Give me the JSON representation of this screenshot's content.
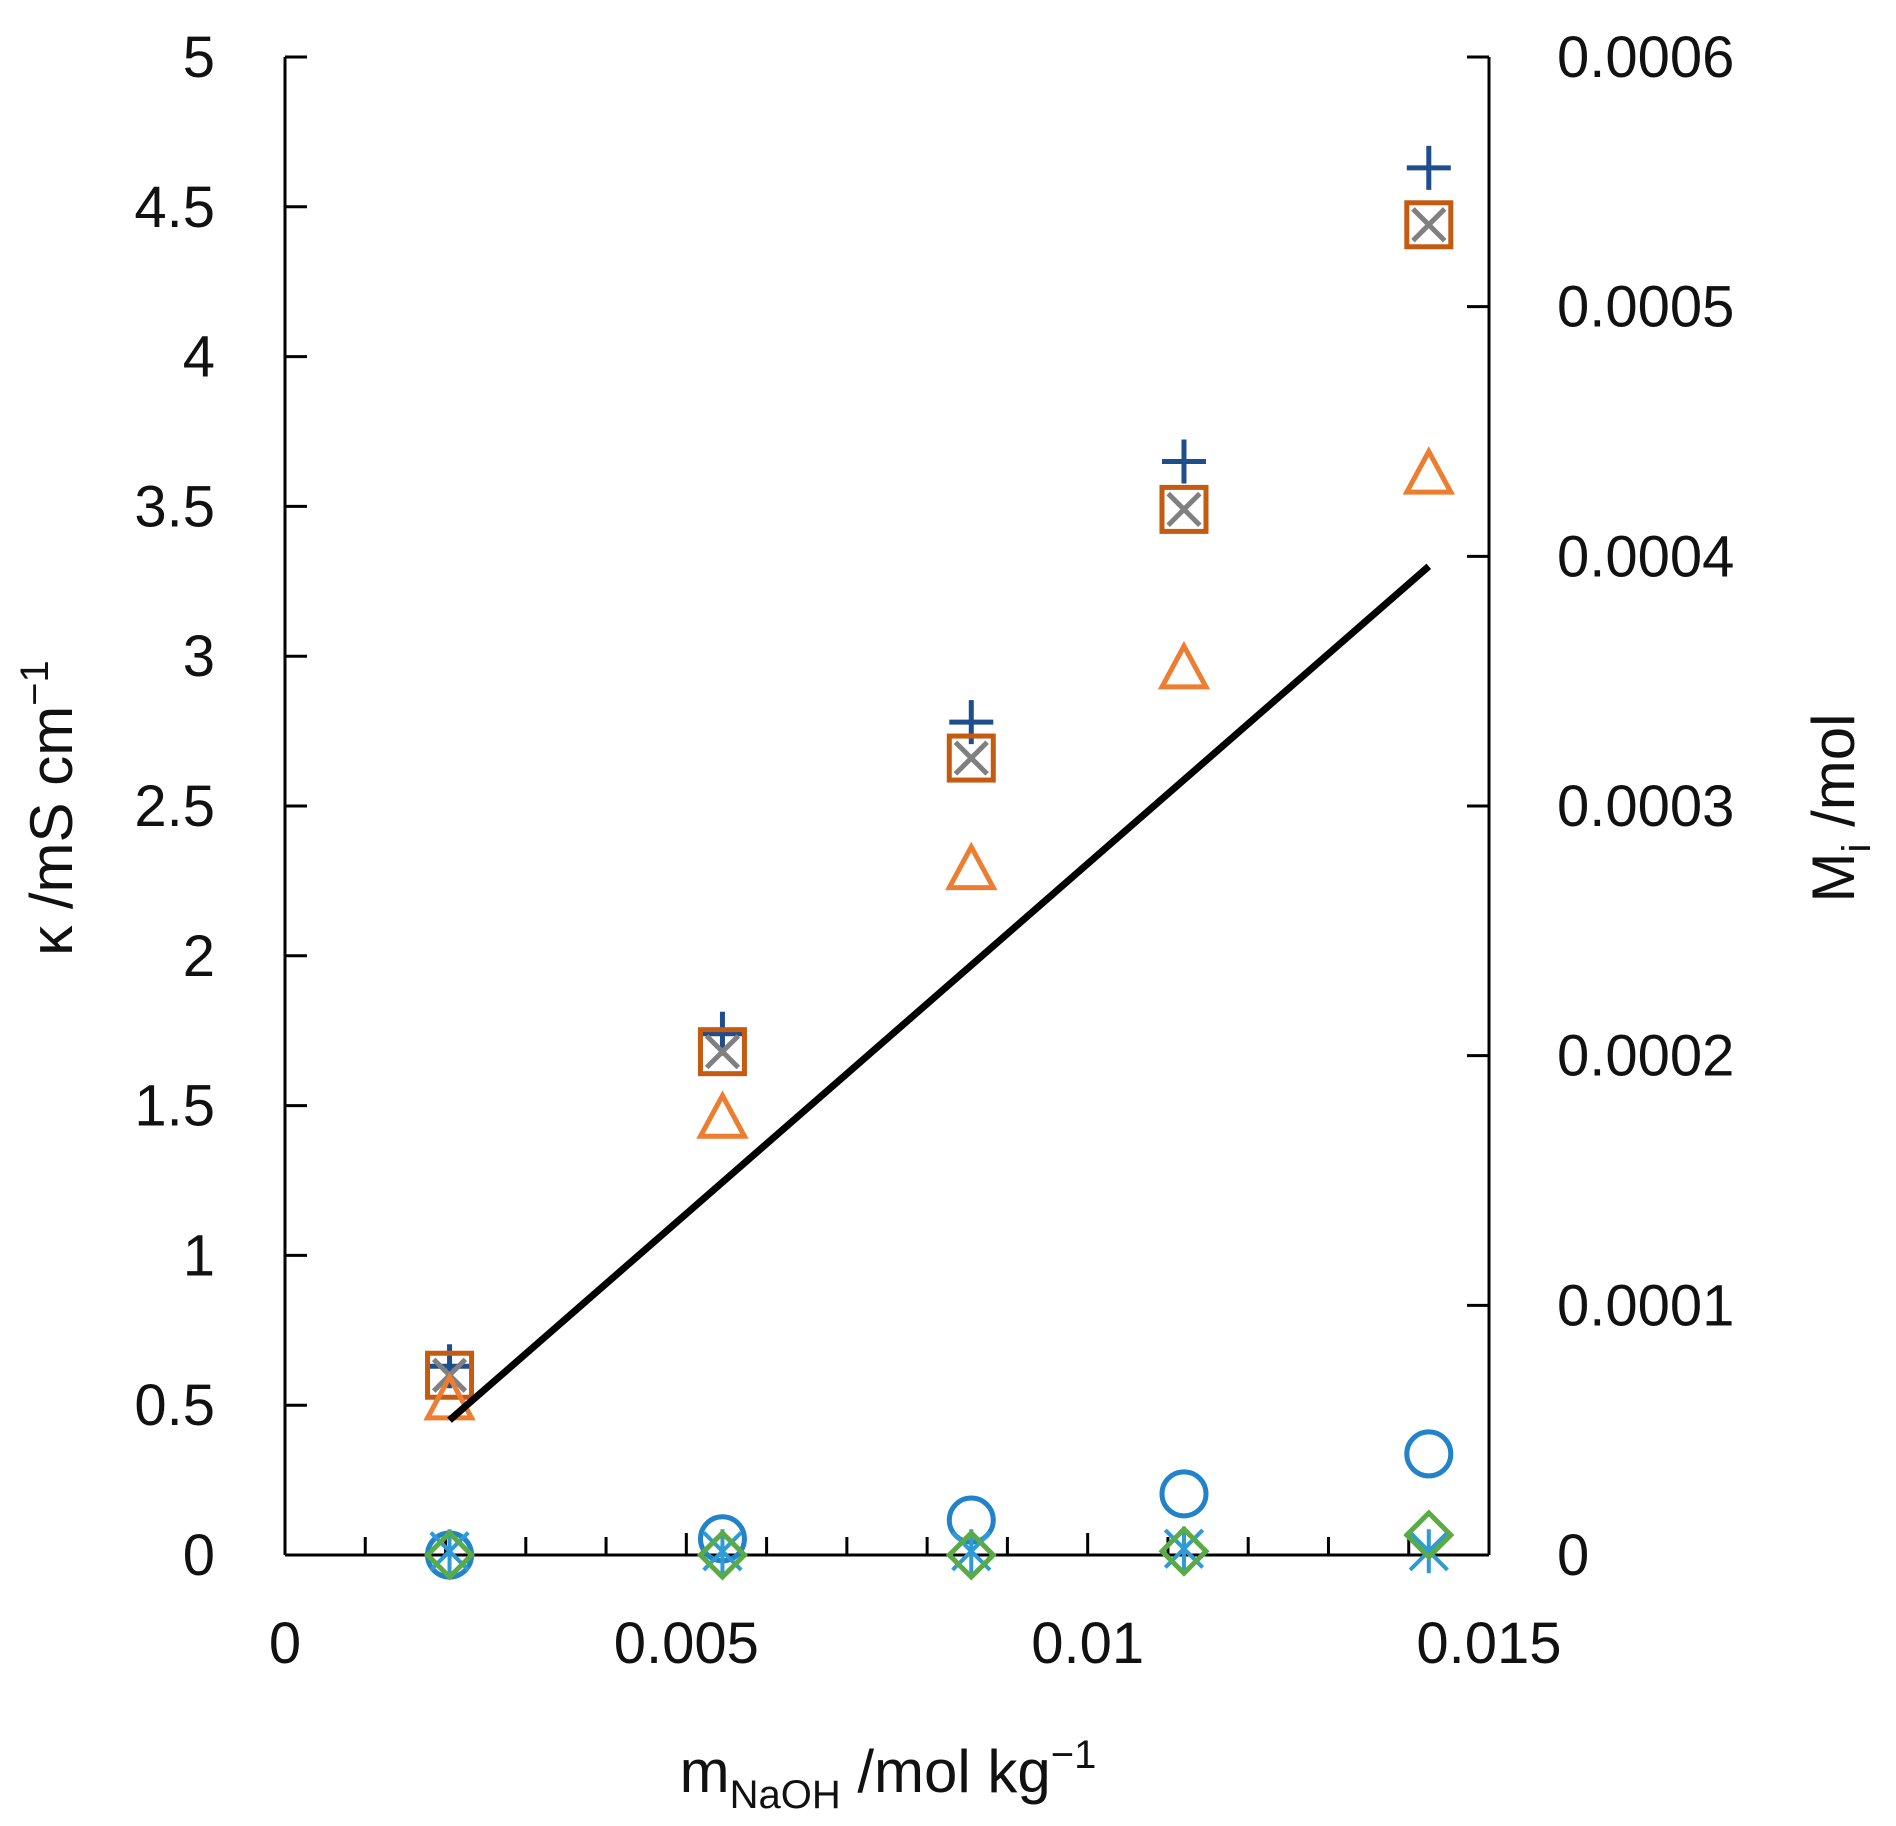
{
  "chart_data": {
    "type": "scatter",
    "title": "",
    "xlabel": {
      "main": "m",
      "sub": "NaOH",
      "unit": " /mol kg",
      "sup": "−1"
    },
    "ylabel_left": {
      "main": "κ /mS cm",
      "sup": "−1"
    },
    "ylabel_right": {
      "main": "M",
      "sub": "i",
      "unit": " /mol"
    },
    "xlim": [
      0,
      0.015
    ],
    "ylim_left": [
      0,
      5
    ],
    "ylim_right": [
      0,
      0.0006
    ],
    "x_ticks": [
      "0",
      "0.005",
      "0.01",
      "0.015"
    ],
    "y_left_ticks": [
      "0",
      "0.5",
      "1",
      "1.5",
      "2",
      "2.5",
      "3",
      "3.5",
      "4",
      "4.5",
      "5"
    ],
    "y_right_ticks": [
      "0",
      "0.0001",
      "0.0002",
      "0.0003",
      "0.0004",
      "0.0005",
      "0.0006"
    ],
    "grid": false,
    "series": [
      {
        "name": "plus",
        "marker": "plus",
        "color": "#1f4e8c",
        "axis": "left",
        "x": [
          0.00205,
          0.00545,
          0.00855,
          0.0112,
          0.01425
        ],
        "y": [
          0.63,
          1.74,
          2.78,
          3.65,
          4.63
        ]
      },
      {
        "name": "square",
        "marker": "square",
        "color": "#c55a11",
        "axis": "left",
        "x": [
          0.00205,
          0.00545,
          0.00855,
          0.0112,
          0.01425
        ],
        "y": [
          0.6,
          1.68,
          2.66,
          3.49,
          4.44
        ]
      },
      {
        "name": "x-in-square",
        "marker": "x",
        "color": "#808080",
        "axis": "left",
        "x": [
          0.00205,
          0.00545,
          0.00855,
          0.0112,
          0.01425
        ],
        "y": [
          0.6,
          1.68,
          2.66,
          3.49,
          4.44
        ]
      },
      {
        "name": "triangle",
        "marker": "triangle",
        "color": "#ed7d31",
        "axis": "left",
        "x": [
          0.00205,
          0.00545,
          0.00855,
          0.0112,
          0.01425
        ],
        "y": [
          0.52,
          1.46,
          2.29,
          2.96,
          3.61
        ]
      },
      {
        "name": "circle",
        "marker": "circle",
        "color": "#2283c8",
        "axis": "right",
        "x": [
          0.00205,
          0.00545,
          0.00855,
          0.0112,
          0.01425
        ],
        "y": [
          0.0,
          6.5e-06,
          1.4e-05,
          2.45e-05,
          4.05e-05
        ]
      },
      {
        "name": "asterisk",
        "marker": "asterisk",
        "color": "#2f9bd6",
        "axis": "right",
        "x": [
          0.00205,
          0.00545,
          0.00855,
          0.0112,
          0.01425
        ],
        "y": [
          1.5e-06,
          1.5e-06,
          1.5e-06,
          2.5e-06,
          1.5e-06
        ]
      },
      {
        "name": "diamond",
        "marker": "diamond",
        "color": "#5aab46",
        "axis": "right",
        "x": [
          0.00205,
          0.00545,
          0.00855,
          0.0112,
          0.01425
        ],
        "y": [
          0.0,
          0.0,
          0.0,
          1.5e-06,
          8e-06
        ]
      },
      {
        "name": "fit-line",
        "marker": "line",
        "color": "#000000",
        "axis": "left",
        "x": [
          0.00205,
          0.01425
        ],
        "y": [
          0.45,
          3.3
        ]
      }
    ]
  }
}
